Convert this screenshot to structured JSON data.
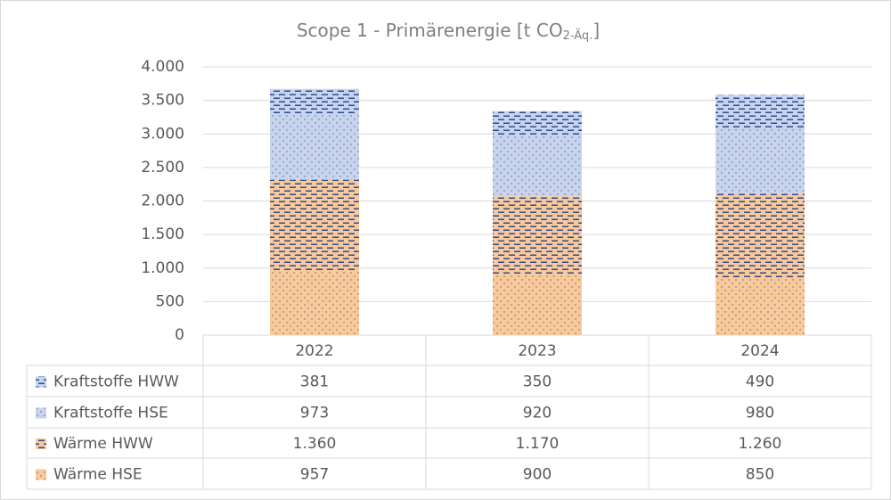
{
  "chart_data": {
    "type": "stacked_bar",
    "title": [
      "Scope 1 - Primärenergie [t CO",
      "2-Äq.",
      "]"
    ],
    "categories": [
      "2022",
      "2023",
      "2024"
    ],
    "series": [
      {
        "name": "Wärme HSE",
        "color": "#f9c89b",
        "pattern": "dots",
        "values": [
          957,
          900,
          850
        ]
      },
      {
        "name": "Wärme HWW",
        "color": "#f9c89b",
        "pattern": "dashes",
        "values": [
          1360,
          1170,
          1260
        ],
        "value_labels": [
          "1.360",
          "1.170",
          "1.260"
        ]
      },
      {
        "name": "Kraftstoffe HSE",
        "color": "#c7d4ef",
        "pattern": "dots",
        "values": [
          973,
          920,
          980
        ]
      },
      {
        "name": "Kraftstoffe HWW",
        "color": "#c7d4ef",
        "pattern": "dashes",
        "values": [
          381,
          350,
          490
        ]
      }
    ],
    "ylim": [
      0,
      4000
    ],
    "yticks": [
      0,
      500,
      {
        "value": 1000,
        "label": "1.000"
      },
      {
        "value": 1500,
        "label": "1.500"
      },
      {
        "value": 2000,
        "label": "2.000"
      },
      {
        "value": 2500,
        "label": "2.500"
      },
      {
        "value": 3000,
        "label": "3.000"
      },
      {
        "value": 3500,
        "label": "3.500"
      },
      {
        "value": 4000,
        "label": "4.000"
      }
    ],
    "grid": true
  }
}
